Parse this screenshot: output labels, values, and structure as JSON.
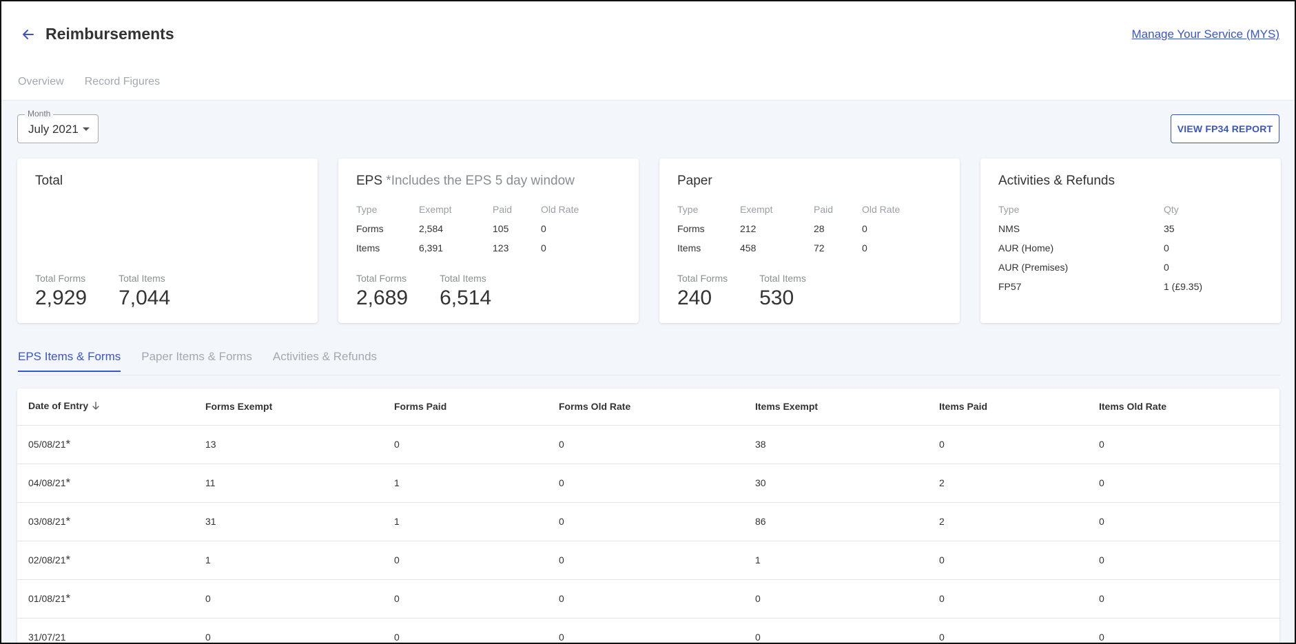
{
  "header": {
    "title": "Reimbursements",
    "link": "Manage Your Service (MYS)",
    "tabs": [
      {
        "label": "Overview"
      },
      {
        "label": "Record Figures"
      }
    ]
  },
  "filters": {
    "month_label": "Month",
    "month_value": "July 2021",
    "report_button": "VIEW FP34 REPORT"
  },
  "cards": {
    "total": {
      "title": "Total",
      "total_forms_label": "Total Forms",
      "total_forms": "2,929",
      "total_items_label": "Total Items",
      "total_items": "7,044"
    },
    "eps": {
      "title": "EPS",
      "note": " *Includes the EPS 5 day window",
      "headers": [
        "Type",
        "Exempt",
        "Paid",
        "Old Rate"
      ],
      "rows": [
        [
          "Forms",
          "2,584",
          "105",
          "0"
        ],
        [
          "Items",
          "6,391",
          "123",
          "0"
        ]
      ],
      "total_forms_label": "Total Forms",
      "total_forms": "2,689",
      "total_items_label": "Total Items",
      "total_items": "6,514"
    },
    "paper": {
      "title": "Paper",
      "headers": [
        "Type",
        "Exempt",
        "Paid",
        "Old Rate"
      ],
      "rows": [
        [
          "Forms",
          "212",
          "28",
          "0"
        ],
        [
          "Items",
          "458",
          "72",
          "0"
        ]
      ],
      "total_forms_label": "Total Forms",
      "total_forms": "240",
      "total_items_label": "Total Items",
      "total_items": "530"
    },
    "activities": {
      "title": "Activities & Refunds",
      "headers": [
        "Type",
        "Qty"
      ],
      "rows": [
        [
          "NMS",
          "35"
        ],
        [
          "AUR (Home)",
          "0"
        ],
        [
          "AUR (Premises)",
          "0"
        ],
        [
          "FP57",
          "1 (£9.35)"
        ]
      ]
    }
  },
  "sub_tabs": [
    {
      "label": "EPS Items & Forms",
      "active": true
    },
    {
      "label": "Paper Items & Forms",
      "active": false
    },
    {
      "label": "Activities & Refunds",
      "active": false
    }
  ],
  "table": {
    "columns": [
      "Date of Entry",
      "Forms Exempt",
      "Forms Paid",
      "Forms Old Rate",
      "Items Exempt",
      "Items Paid",
      "Items Old Rate"
    ],
    "rows": [
      {
        "date": "05/08/21",
        "mark": "*",
        "values": [
          "13",
          "0",
          "0",
          "38",
          "0",
          "0"
        ]
      },
      {
        "date": "04/08/21",
        "mark": "*",
        "values": [
          "11",
          "1",
          "0",
          "30",
          "2",
          "0"
        ]
      },
      {
        "date": "03/08/21",
        "mark": "*",
        "values": [
          "31",
          "1",
          "0",
          "86",
          "2",
          "0"
        ]
      },
      {
        "date": "02/08/21",
        "mark": "*",
        "values": [
          "1",
          "0",
          "0",
          "1",
          "0",
          "0"
        ]
      },
      {
        "date": "01/08/21",
        "mark": "*",
        "values": [
          "0",
          "0",
          "0",
          "0",
          "0",
          "0"
        ]
      },
      {
        "date": "31/07/21",
        "mark": "",
        "values": [
          "0",
          "0",
          "0",
          "0",
          "0",
          "0"
        ]
      }
    ]
  },
  "colors": {
    "accent": "#3a55c8",
    "muted": "#a4a8b0",
    "background": "#f3f6fb"
  },
  "icons": {
    "back": "arrow-left-icon",
    "sort": "arrow-down-icon",
    "dropdown": "caret-down-icon"
  }
}
